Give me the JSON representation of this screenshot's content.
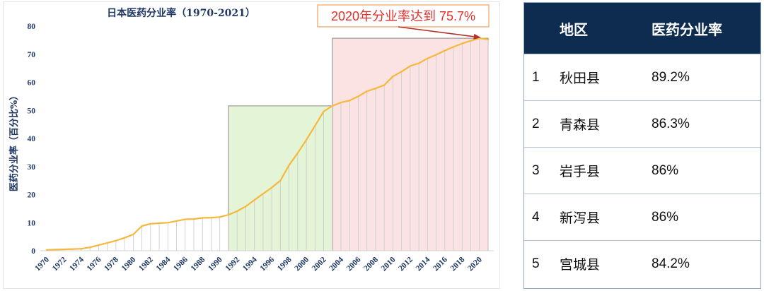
{
  "chart_data": {
    "type": "line",
    "title": "日本医药分业率（1970-2021）",
    "ylabel": "医药分业率（百分比%）",
    "xlim": [
      1970,
      2021
    ],
    "ylim": [
      0,
      80
    ],
    "yticks": [
      0,
      10,
      20,
      30,
      40,
      50,
      60,
      70,
      80
    ],
    "xticks": [
      1970,
      1972,
      1974,
      1976,
      1978,
      1980,
      1982,
      1984,
      1986,
      1988,
      1990,
      1992,
      1994,
      1996,
      1998,
      2000,
      2002,
      2004,
      2006,
      2008,
      2010,
      2012,
      2014,
      2016,
      2018,
      2020
    ],
    "x": [
      1970,
      1971,
      1972,
      1973,
      1974,
      1975,
      1976,
      1977,
      1978,
      1979,
      1980,
      1981,
      1982,
      1983,
      1984,
      1985,
      1986,
      1987,
      1988,
      1989,
      1990,
      1991,
      1992,
      1993,
      1994,
      1995,
      1996,
      1997,
      1998,
      1999,
      2000,
      2001,
      2002,
      2003,
      2004,
      2005,
      2006,
      2007,
      2008,
      2009,
      2010,
      2011,
      2012,
      2013,
      2014,
      2015,
      2016,
      2017,
      2018,
      2019,
      2020,
      2021
    ],
    "series": [
      {
        "values": [
          0.3,
          0.4,
          0.5,
          0.6,
          0.7,
          1.2,
          2.0,
          2.8,
          3.6,
          4.6,
          5.8,
          8.8,
          9.6,
          9.8,
          10.0,
          10.6,
          11.2,
          11.3,
          11.7,
          11.8,
          12.0,
          12.8,
          14.1,
          15.8,
          18.1,
          20.3,
          22.5,
          25.0,
          30.5,
          34.8,
          39.5,
          44.5,
          49.6,
          51.6,
          52.8,
          53.5,
          55.0,
          56.8,
          57.8,
          59.0,
          62.1,
          63.8,
          65.8,
          66.8,
          68.5,
          69.8,
          71.3,
          72.6,
          73.8,
          74.8,
          75.7,
          75.3
        ],
        "color": "#f5b83d"
      }
    ],
    "grid": false,
    "drop_lines": true,
    "highlight_ranges": [
      {
        "from": 1991,
        "to": 2003,
        "ymax": 51.6,
        "color": "#e3f5d6"
      },
      {
        "from": 2003,
        "to": 2021,
        "ymax": 75.7,
        "color": "#fbe3e3"
      }
    ],
    "annotation": {
      "text": "2020年分业率达到 75.7%",
      "x": 2020,
      "y": 75.7,
      "text_color": "#e0302a",
      "border_color": "#f3a25c",
      "arrow_color": "#b5302b"
    }
  },
  "table": {
    "header_color": "#0e2b50",
    "headers": {
      "region": "地区",
      "rate": "医药分业率"
    },
    "rows": [
      {
        "rank": "1",
        "region": "秋田县",
        "rate": "89.2%"
      },
      {
        "rank": "2",
        "region": "青森县",
        "rate": "86.3%"
      },
      {
        "rank": "3",
        "region": "岩手县",
        "rate": "86%"
      },
      {
        "rank": "4",
        "region": "新泻县",
        "rate": "86%"
      },
      {
        "rank": "5",
        "region": "宫城县",
        "rate": "84.2%"
      }
    ]
  }
}
